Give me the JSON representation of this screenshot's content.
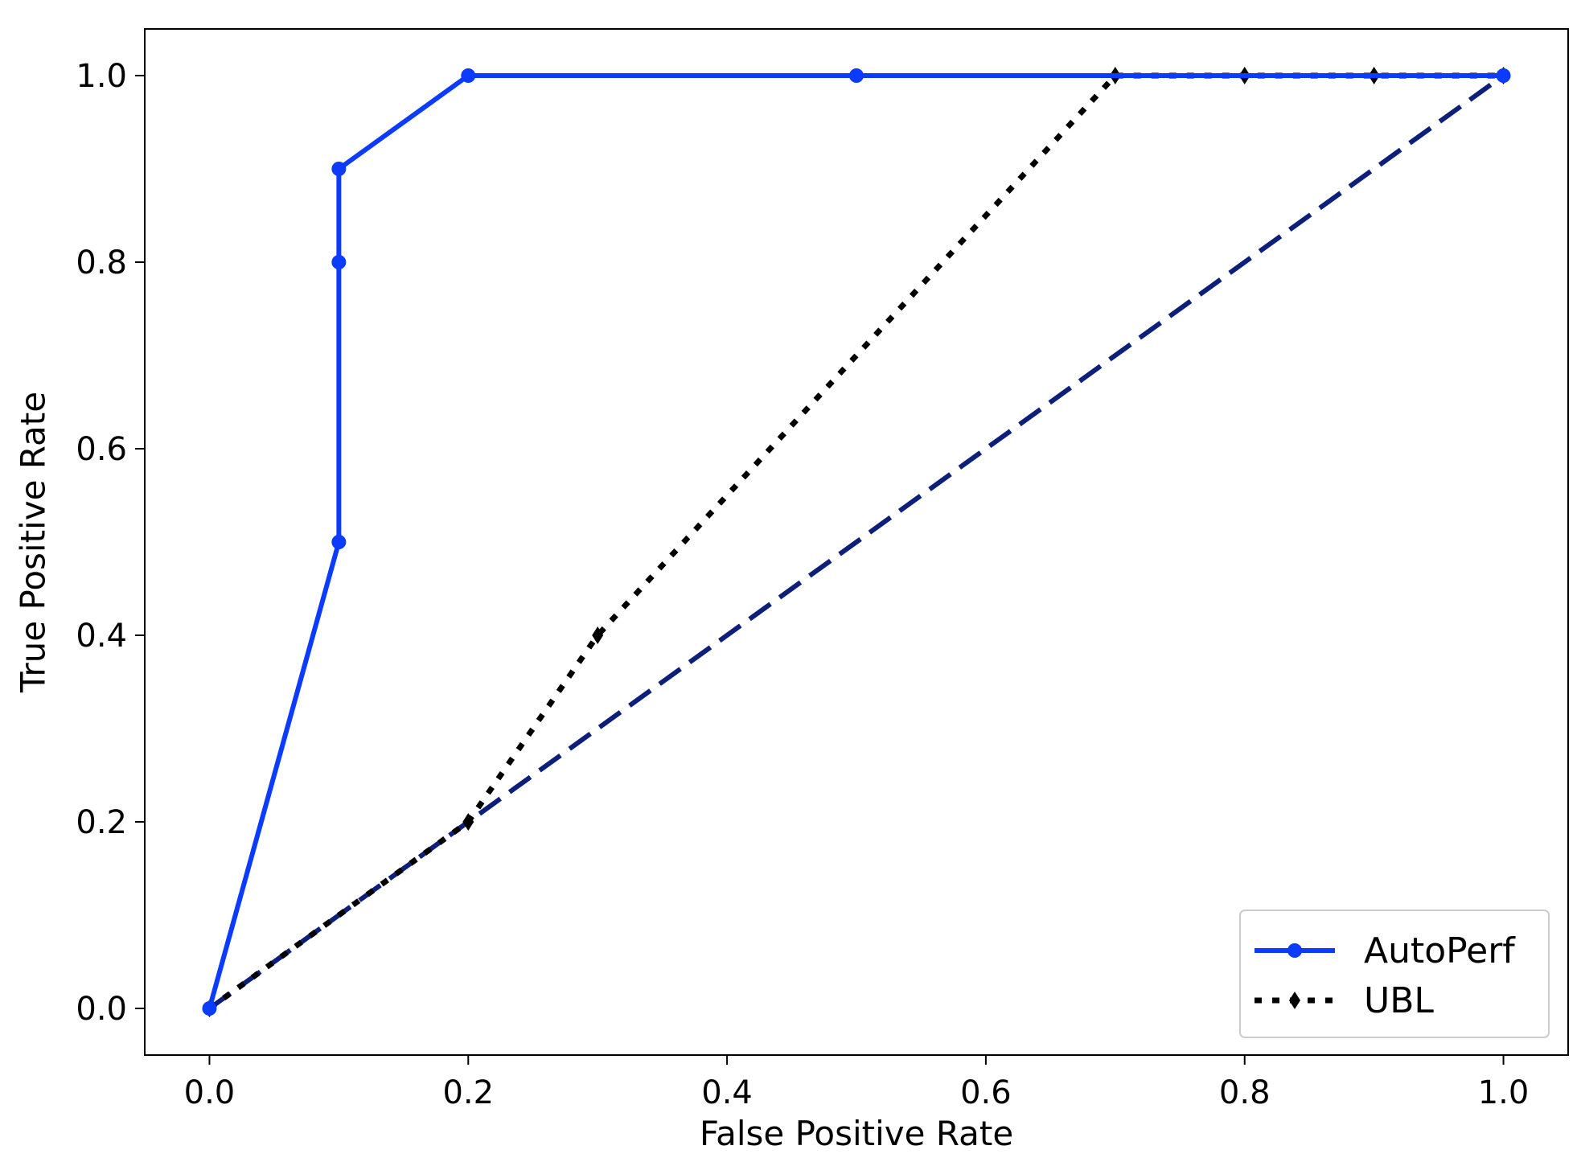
{
  "chart_data": {
    "type": "line",
    "xlabel": "False Positive Rate",
    "ylabel": "True Positive Rate",
    "xlim": [
      -0.05,
      1.05
    ],
    "ylim": [
      -0.05,
      1.05
    ],
    "xticks": [
      "0.0",
      "0.2",
      "0.4",
      "0.6",
      "0.8",
      "1.0"
    ],
    "yticks": [
      "0.0",
      "0.2",
      "0.4",
      "0.6",
      "0.8",
      "1.0"
    ],
    "grid": false,
    "legend_position": "bottom-right",
    "series": [
      {
        "name": "AutoPerf",
        "color": "#0a3bff",
        "line_style": "solid",
        "marker": "circle",
        "x": [
          0.0,
          0.1,
          0.1,
          0.1,
          0.2,
          0.5,
          1.0
        ],
        "y": [
          0.0,
          0.5,
          0.8,
          0.9,
          1.0,
          1.0,
          1.0
        ]
      },
      {
        "name": "UBL",
        "color": "#000000",
        "line_style": "dotted",
        "marker": "diamond",
        "x": [
          0.0,
          0.2,
          0.3,
          0.7,
          0.8,
          0.9,
          1.0
        ],
        "y": [
          0.0,
          0.2,
          0.4,
          1.0,
          1.0,
          1.0,
          1.0
        ]
      }
    ],
    "reference_line": {
      "color": "#0c1f7a",
      "line_style": "dashed",
      "x": [
        0.0,
        1.0
      ],
      "y": [
        0.0,
        1.0
      ]
    }
  }
}
